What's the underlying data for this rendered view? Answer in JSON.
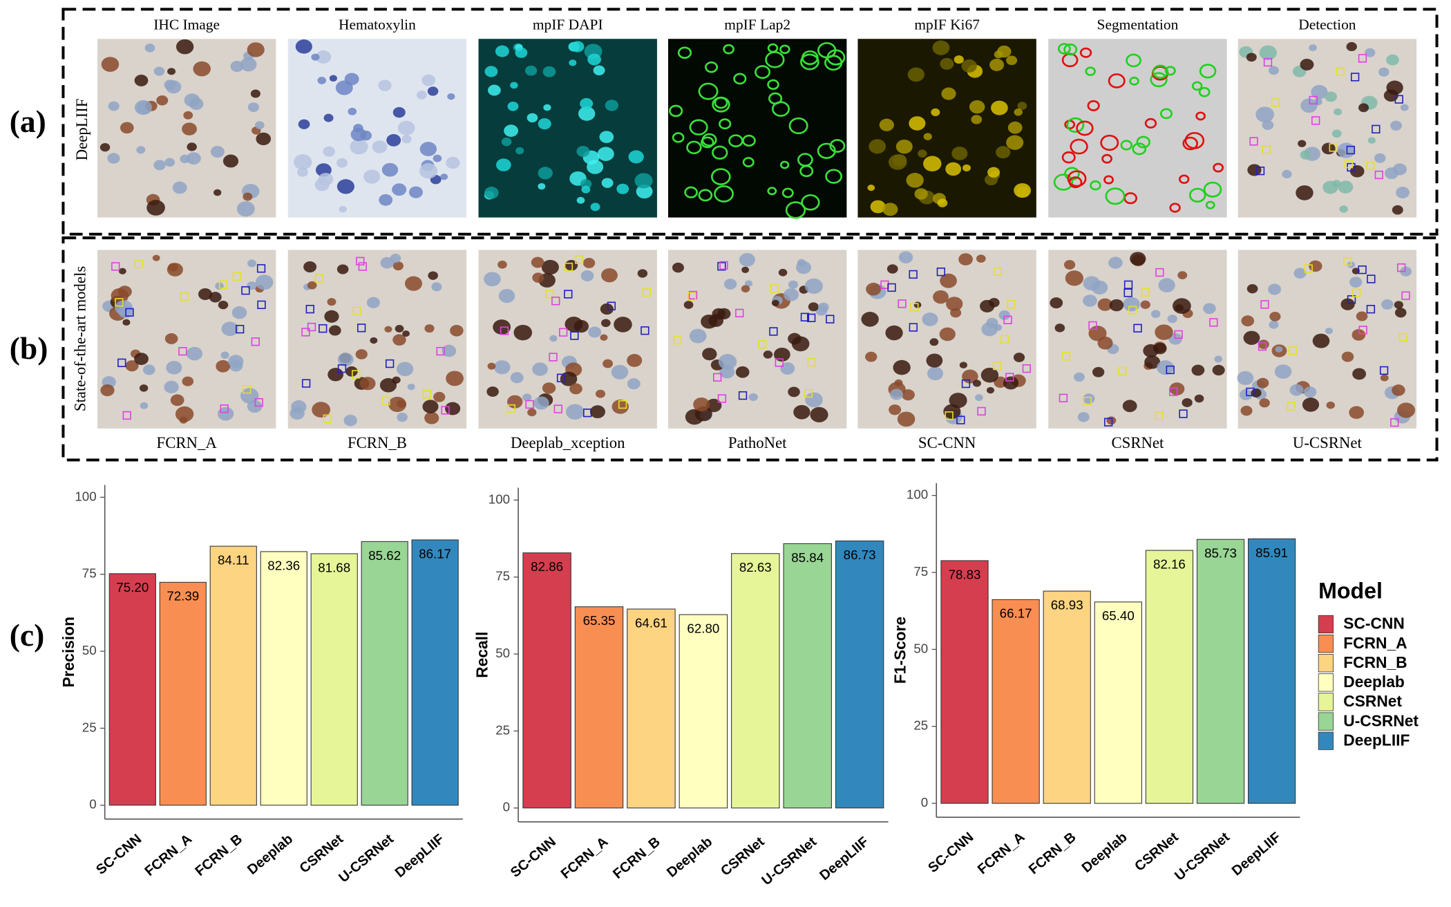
{
  "panel_a": {
    "label": "(a)",
    "side_label": "DeepLIIF",
    "titles": [
      "IHC Image",
      "Hematoxylin",
      "mpIF DAPI",
      "mpIF Lap2",
      "mpIF Ki67",
      "Segmentation",
      "Detection"
    ]
  },
  "panel_b": {
    "label": "(b)",
    "side_label": "State-of-the-art models",
    "captions": [
      "FCRN_A",
      "FCRN_B",
      "Deeplab_xception",
      "PathoNet",
      "SC-CNN",
      "CSRNet",
      "U-CSRNet"
    ]
  },
  "panel_c": {
    "label": "(c)"
  },
  "chart_data": [
    {
      "type": "bar",
      "y_label": "Precision",
      "categories": [
        "SC-CNN",
        "FCRN_A",
        "FCRN_B",
        "Deeplab",
        "CSRNet",
        "U-CSRNet",
        "DeepLIIF"
      ],
      "values": [
        75.2,
        72.39,
        84.11,
        82.36,
        81.68,
        85.62,
        86.17
      ],
      "value_labels": [
        "75.20",
        "72.39",
        "84.11",
        "82.36",
        "81.68",
        "85.62",
        "86.17"
      ],
      "colors": [
        "#d53e4f",
        "#f98e52",
        "#fdd481",
        "#ffffbf",
        "#e6f598",
        "#99d594",
        "#3288bd"
      ],
      "ylim": [
        -4.5,
        104
      ],
      "yticks": [
        0,
        25,
        50,
        75,
        100
      ]
    },
    {
      "type": "bar",
      "y_label": "Recall",
      "categories": [
        "SC-CNN",
        "FCRN_A",
        "FCRN_B",
        "Deeplab",
        "CSRNet",
        "U-CSRNet",
        "DeepLIIF"
      ],
      "values": [
        82.86,
        65.35,
        64.61,
        62.8,
        82.63,
        85.84,
        86.73
      ],
      "value_labels": [
        "82.86",
        "65.35",
        "64.61",
        "62.80",
        "82.63",
        "85.84",
        "86.73"
      ],
      "colors": [
        "#d53e4f",
        "#f98e52",
        "#fdd481",
        "#ffffbf",
        "#e6f598",
        "#99d594",
        "#3288bd"
      ],
      "ylim": [
        -4.5,
        104
      ],
      "yticks": [
        0,
        25,
        50,
        75,
        100
      ]
    },
    {
      "type": "bar",
      "y_label": "F1-Score",
      "categories": [
        "SC-CNN",
        "FCRN_A",
        "FCRN_B",
        "Deeplab",
        "CSRNet",
        "U-CSRNet",
        "DeepLIIF"
      ],
      "values": [
        78.83,
        66.17,
        68.93,
        65.4,
        82.16,
        85.73,
        85.91
      ],
      "value_labels": [
        "78.83",
        "66.17",
        "68.93",
        "65.40",
        "82.16",
        "85.73",
        "85.91"
      ],
      "colors": [
        "#d53e4f",
        "#f98e52",
        "#fdd481",
        "#ffffbf",
        "#e6f598",
        "#99d594",
        "#3288bd"
      ],
      "ylim": [
        -4.5,
        104
      ],
      "yticks": [
        0,
        25,
        50,
        75,
        100
      ],
      "legend_title": "Model"
    }
  ]
}
